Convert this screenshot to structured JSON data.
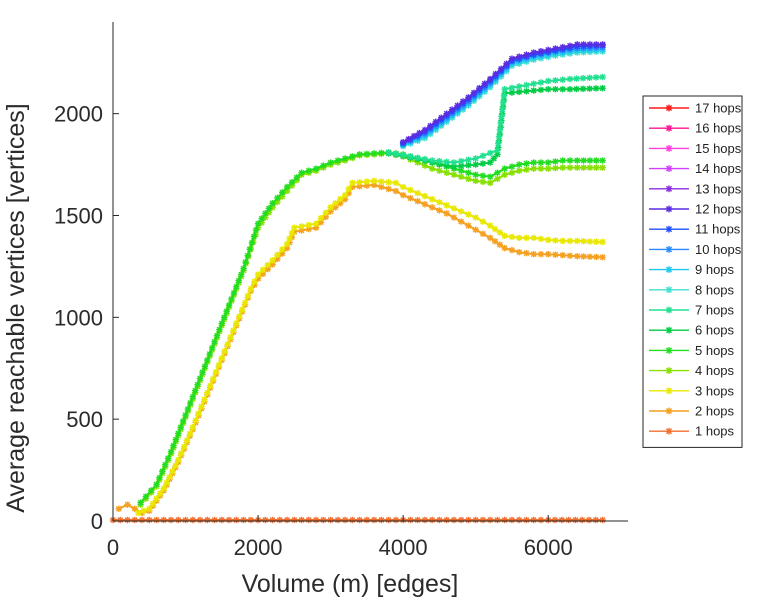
{
  "chart_data": {
    "type": "line",
    "title": "",
    "xlabel": "Volume (m) [edges]",
    "ylabel": "Average reachable vertices [vertices]",
    "xlim": [
      0,
      7100
    ],
    "ylim": [
      0,
      2450
    ],
    "xticks": [
      0,
      2000,
      4000,
      6000
    ],
    "xtick_labels": [
      "0",
      "2000",
      "4000",
      "6000"
    ],
    "yticks": [
      0,
      500,
      1000,
      1500,
      2000
    ],
    "ytick_labels": [
      "0",
      "500",
      "1000",
      "1500",
      "2000"
    ],
    "grid": false,
    "legend_position": "right",
    "series": [
      {
        "name": "17 hops",
        "color": "#ff1a1a",
        "x": [],
        "y": []
      },
      {
        "name": "16 hops",
        "color": "#ff1493",
        "x": [],
        "y": []
      },
      {
        "name": "15 hops",
        "color": "#ff40e0",
        "x": [],
        "y": []
      },
      {
        "name": "14 hops",
        "color": "#d040ff",
        "x": [],
        "y": []
      },
      {
        "name": "13 hops",
        "color": "#8a2be2",
        "x": [],
        "y": []
      },
      {
        "name": "12 hops",
        "color": "#5a2de0",
        "x": [
          4000,
          4300,
          4600,
          4900,
          5200,
          5500,
          5800,
          6100,
          6400,
          6750
        ],
        "y": [
          1860,
          1920,
          2000,
          2080,
          2170,
          2270,
          2300,
          2320,
          2340,
          2340
        ]
      },
      {
        "name": "11 hops",
        "color": "#2050ff",
        "x": [
          4000,
          4300,
          4600,
          4900,
          5200,
          5500,
          5800,
          6100,
          6400,
          6750
        ],
        "y": [
          1855,
          1910,
          1990,
          2070,
          2160,
          2260,
          2290,
          2310,
          2330,
          2335
        ]
      },
      {
        "name": "10 hops",
        "color": "#2a8cff",
        "x": [
          4000,
          4300,
          4600,
          4900,
          5200,
          5500,
          5800,
          6100,
          6400,
          6750
        ],
        "y": [
          1850,
          1900,
          1980,
          2060,
          2150,
          2255,
          2285,
          2305,
          2320,
          2325
        ]
      },
      {
        "name": "9 hops",
        "color": "#1fc8f0",
        "x": [
          4000,
          4300,
          4600,
          4900,
          5200,
          5500,
          5800,
          6100,
          6400,
          6750
        ],
        "y": [
          1845,
          1890,
          1970,
          2050,
          2140,
          2245,
          2275,
          2295,
          2310,
          2315
        ]
      },
      {
        "name": "8 hops",
        "color": "#40e0d0",
        "x": [
          4000,
          4300,
          4600,
          4900,
          5200,
          5500,
          5800,
          6100,
          6400,
          6750
        ],
        "y": [
          1840,
          1880,
          1960,
          2040,
          2130,
          2235,
          2265,
          2285,
          2300,
          2305
        ]
      },
      {
        "name": "7 hops",
        "color": "#22e090",
        "x": [
          3800,
          4100,
          4400,
          4700,
          5000,
          5300,
          5400,
          5700,
          6000,
          6300,
          6750
        ],
        "y": [
          1810,
          1790,
          1770,
          1760,
          1780,
          1820,
          2120,
          2140,
          2160,
          2170,
          2180
        ]
      },
      {
        "name": "6 hops",
        "color": "#00cc44",
        "x": [
          3800,
          4100,
          4400,
          4700,
          5000,
          5200,
          5300,
          5400,
          5700,
          6000,
          6300,
          6750
        ],
        "y": [
          1805,
          1785,
          1760,
          1740,
          1750,
          1760,
          1800,
          2100,
          2110,
          2120,
          2120,
          2125
        ]
      },
      {
        "name": "5 hops",
        "color": "#22dd22",
        "x": [
          380,
          600,
          800,
          1000,
          1200,
          1400,
          1600,
          1800,
          2000,
          2200,
          2400,
          2600,
          2800,
          3000,
          3200,
          3400,
          3600,
          3800,
          4000,
          4200,
          4400,
          4600,
          4800,
          5000,
          5200,
          5400,
          5600,
          5800,
          6000,
          6200,
          6400,
          6750
        ],
        "y": [
          90,
          180,
          340,
          520,
          700,
          880,
          1060,
          1240,
          1460,
          1560,
          1640,
          1710,
          1730,
          1760,
          1780,
          1800,
          1805,
          1810,
          1800,
          1780,
          1760,
          1740,
          1720,
          1700,
          1690,
          1730,
          1750,
          1760,
          1760,
          1770,
          1770,
          1770
        ]
      },
      {
        "name": "4 hops",
        "color": "#88e000",
        "x": [
          380,
          600,
          800,
          1000,
          1200,
          1400,
          1600,
          1800,
          2000,
          2200,
          2400,
          2600,
          2800,
          3000,
          3200,
          3400,
          3600,
          3800,
          4000,
          4200,
          4400,
          4600,
          4800,
          5000,
          5200,
          5400,
          5600,
          5800,
          6000,
          6200,
          6400,
          6750
        ],
        "y": [
          80,
          170,
          330,
          510,
          690,
          870,
          1050,
          1230,
          1440,
          1540,
          1620,
          1700,
          1720,
          1750,
          1770,
          1795,
          1800,
          1805,
          1790,
          1760,
          1730,
          1710,
          1690,
          1670,
          1660,
          1700,
          1720,
          1730,
          1730,
          1735,
          1735,
          1735
        ]
      },
      {
        "name": "3 hops",
        "color": "#e8e800",
        "x": [
          350,
          500,
          700,
          900,
          1100,
          1300,
          1500,
          1700,
          1900,
          2000,
          2200,
          2400,
          2500,
          2800,
          3000,
          3200,
          3300,
          3600,
          3900,
          4000,
          4200,
          4400,
          4600,
          4800,
          5000,
          5200,
          5400,
          5600,
          5800,
          6000,
          6200,
          6400,
          6750
        ],
        "y": [
          40,
          60,
          160,
          300,
          460,
          630,
          800,
          970,
          1140,
          1210,
          1280,
          1360,
          1440,
          1460,
          1540,
          1600,
          1660,
          1670,
          1660,
          1640,
          1610,
          1580,
          1550,
          1520,
          1490,
          1450,
          1400,
          1390,
          1390,
          1380,
          1375,
          1375,
          1370
        ]
      },
      {
        "name": "2 hops",
        "color": "#f5a020",
        "x": [
          80,
          200,
          400,
          500,
          700,
          900,
          1100,
          1300,
          1500,
          1700,
          1900,
          2000,
          2200,
          2400,
          2500,
          2800,
          3000,
          3200,
          3300,
          3600,
          3900,
          4000,
          4200,
          4400,
          4600,
          4800,
          5000,
          5200,
          5400,
          5600,
          5800,
          6000,
          6200,
          6400,
          6750
        ],
        "y": [
          60,
          80,
          40,
          50,
          150,
          290,
          450,
          620,
          790,
          960,
          1130,
          1190,
          1260,
          1340,
          1420,
          1440,
          1520,
          1580,
          1640,
          1650,
          1620,
          1600,
          1570,
          1540,
          1510,
          1470,
          1430,
          1390,
          1340,
          1320,
          1310,
          1310,
          1305,
          1300,
          1295
        ]
      },
      {
        "name": "1 hops",
        "color": "#f07030",
        "x": [
          0,
          500,
          1000,
          2000,
          3000,
          4000,
          5000,
          6000,
          6750
        ],
        "y": [
          5,
          5,
          5,
          5,
          5,
          5,
          5,
          5,
          5
        ]
      }
    ]
  }
}
